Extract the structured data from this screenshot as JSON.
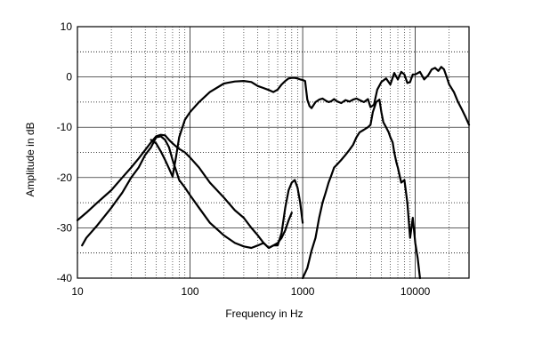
{
  "chart_data": {
    "type": "line",
    "title": "",
    "xlabel": "Frequency in Hz",
    "ylabel": "Amplitude in dB",
    "xscale": "log",
    "xlim": [
      10,
      30000
    ],
    "ylim": [
      -40,
      10
    ],
    "grid": true,
    "legend": "none",
    "line_color": "#000000",
    "grid_color": "#000000",
    "x_ticks": [
      {
        "value": 10,
        "label": "10"
      },
      {
        "value": 100,
        "label": "100"
      },
      {
        "value": 1000,
        "label": "1000"
      },
      {
        "value": 10000,
        "label": "10000"
      }
    ],
    "y_ticks": [
      {
        "value": 10,
        "label": "10"
      },
      {
        "value": 0,
        "label": "0"
      },
      {
        "value": -10,
        "label": "-10"
      },
      {
        "value": -20,
        "label": "-20"
      },
      {
        "value": -30,
        "label": "-30"
      },
      {
        "value": -40,
        "label": "-40"
      }
    ],
    "series": [
      {
        "x": [
          10,
          12,
          15,
          20,
          25,
          30,
          35,
          40,
          45,
          50,
          55,
          60,
          65,
          70,
          75,
          80,
          90,
          100,
          120,
          150,
          200,
          250,
          300,
          350,
          400,
          450,
          500,
          550,
          600,
          650,
          700,
          750,
          800,
          850,
          900,
          950,
          1000
        ],
        "y": [
          -28.5,
          -27,
          -25,
          -22.5,
          -20,
          -18,
          -16.2,
          -14.5,
          -13,
          -11.8,
          -11.5,
          -11.6,
          -12.5,
          -13.2,
          -13.8,
          -14.3,
          -15,
          -16,
          -18,
          -21,
          -24,
          -26.5,
          -28,
          -30,
          -31.5,
          -33,
          -34,
          -33.5,
          -33.5,
          -31,
          -26,
          -22.5,
          -21,
          -20.5,
          -22,
          -25,
          -29
        ]
      },
      {
        "x": [
          11,
          12,
          15,
          20,
          25,
          30,
          35,
          40,
          45,
          50,
          55,
          60,
          65,
          70,
          75,
          80,
          90,
          100,
          120,
          150,
          200,
          250,
          300,
          350,
          400,
          450,
          500,
          550,
          600,
          650,
          700,
          750,
          800
        ],
        "y": [
          -33.5,
          -32,
          -29.5,
          -26,
          -23,
          -20,
          -18,
          -15.5,
          -14,
          -12,
          -11.8,
          -12.5,
          -14,
          -16.5,
          -18.5,
          -20.5,
          -22,
          -23.5,
          -26,
          -29,
          -31.5,
          -33,
          -33.7,
          -34,
          -33.5,
          -33,
          -34,
          -33.5,
          -33,
          -32,
          -30.5,
          -28.5,
          -27
        ]
      },
      {
        "x": [
          45,
          50,
          55,
          60,
          65,
          70,
          75,
          80,
          90,
          100,
          120,
          150,
          200,
          250,
          300,
          350,
          400,
          450,
          500,
          550,
          600,
          650,
          700,
          750,
          800,
          850,
          900,
          950,
          1000,
          1050,
          1100,
          1150,
          1200,
          1300,
          1400,
          1500,
          1600,
          1700,
          1800,
          1900,
          2000,
          2200,
          2400,
          2600,
          2800,
          3000,
          3200,
          3500,
          3800,
          4000,
          4300,
          4600,
          5000,
          5500,
          6000,
          6500,
          7000,
          7500,
          8000,
          8500,
          9000,
          9500,
          10000,
          11000,
          12000,
          13000,
          14000,
          15000,
          16000,
          17000,
          18000,
          19000,
          20000,
          22000,
          24000,
          26000,
          28000,
          30000
        ],
        "y": [
          -12.5,
          -13.2,
          -14.8,
          -16.5,
          -18.2,
          -19.8,
          -16,
          -12,
          -8.5,
          -7,
          -5,
          -3,
          -1.3,
          -0.9,
          -0.8,
          -1,
          -1.8,
          -2.2,
          -2.6,
          -3,
          -2.5,
          -1.5,
          -0.8,
          -0.3,
          -0.2,
          -0.2,
          -0.3,
          -0.5,
          -0.6,
          -0.8,
          -4.5,
          -5.8,
          -6.2,
          -5,
          -4.5,
          -4.3,
          -4.7,
          -5,
          -4.8,
          -4.4,
          -4.8,
          -5.2,
          -4.6,
          -4.9,
          -4.5,
          -4.3,
          -4.6,
          -5,
          -4.4,
          -6,
          -5.5,
          -2.5,
          -1,
          -0.3,
          -1.5,
          0.8,
          -0.5,
          1,
          0.5,
          -1.2,
          -1,
          0.5,
          0.5,
          1,
          -0.5,
          0.3,
          1.5,
          1.8,
          1.2,
          2,
          1.5,
          0,
          -1.5,
          -3,
          -5,
          -6.5,
          -8,
          -9.5
        ]
      },
      {
        "x": [
          1000,
          1100,
          1200,
          1300,
          1400,
          1500,
          1600,
          1700,
          1800,
          1900,
          2000,
          2200,
          2400,
          2600,
          2800,
          3000,
          3200,
          3500,
          3800,
          4000,
          4200,
          4500,
          4800,
          5000,
          5200,
          5500,
          5800,
          6000,
          6300,
          6500,
          6800,
          7000,
          7500,
          8000,
          8500,
          9000,
          9500,
          10000,
          10500,
          11000
        ],
        "y": [
          -43,
          -38,
          -34.5,
          -32,
          -28,
          -25,
          -23,
          -21,
          -19.5,
          -18,
          -17.5,
          -16.5,
          -15.5,
          -14.5,
          -13.5,
          -12,
          -11,
          -10.5,
          -10,
          -9.5,
          -7,
          -5,
          -4.5,
          -7,
          -9,
          -10,
          -11,
          -12,
          -13,
          -15,
          -17,
          -18,
          -21,
          -20.5,
          -25,
          -32,
          -28,
          -33,
          -36,
          -40
        ]
      }
    ]
  }
}
